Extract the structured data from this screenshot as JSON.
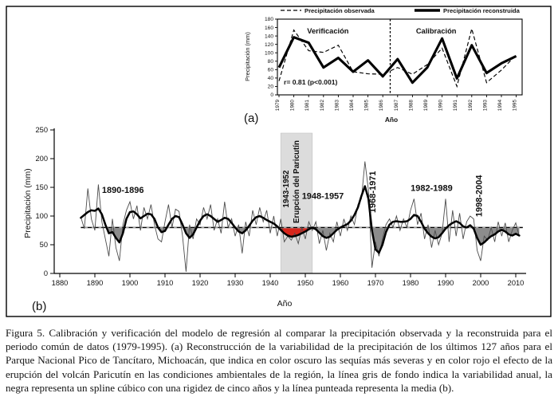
{
  "caption": "Figura 5. Calibración y verificación del modelo de regresión al comparar la precipitación observada y la reconstruida para el periodo común de datos (1979-1995). (a) Reconstrucción de la variabilidad de la precipitación de los últimos 127 años para el Parque Nacional Pico de Tancítaro, Michoacán, que indica en color oscuro las sequías más severas y en color rojo el efecto de la erupción del volcán Paricutín en las condiciones ambientales de la región, la línea gris de fondo indica la variabilidad anual, la negra representa un spline cúbico con una rigidez de cinco años y la línea punteada representa la media (b).",
  "chart_data": [
    {
      "id": "panel_a",
      "panel_label": "(a)",
      "type": "line",
      "xlabel": "Año",
      "ylabel": "Precipitación (mm)",
      "ylim": [
        0,
        180
      ],
      "yticks": [
        0,
        20,
        40,
        60,
        80,
        100,
        120,
        140,
        160,
        180
      ],
      "x": [
        1979,
        1980,
        1981,
        1982,
        1983,
        1984,
        1985,
        1986,
        1987,
        1988,
        1989,
        1990,
        1991,
        1992,
        1993,
        1994,
        1995
      ],
      "series": [
        {
          "name": "Precipitación observada",
          "style": "dashed",
          "values": [
            33,
            154,
            105,
            101,
            118,
            55,
            50,
            49,
            65,
            49,
            72,
            111,
            20,
            157,
            29,
            59,
            95
          ]
        },
        {
          "name": "Precipitación reconstruida",
          "style": "solid-thick",
          "values": [
            65,
            137,
            124,
            65,
            88,
            55,
            82,
            44,
            85,
            29,
            65,
            134,
            39,
            118,
            52,
            75,
            92
          ]
        }
      ],
      "section_labels": [
        {
          "text": "Verificación",
          "x": 1982.3
        },
        {
          "text": "Calibración",
          "x": 1989.6
        }
      ],
      "divider_x": 1986.5,
      "stat_annotation": "r= 0.81 (p<0.001)",
      "legend_position": "top",
      "grid": false
    },
    {
      "id": "panel_b",
      "panel_label": "(b)",
      "type": "line+area",
      "xlabel": "Año",
      "ylabel": "Precipitación (mm)",
      "ylim": [
        0,
        250
      ],
      "yticks": [
        0,
        50,
        100,
        150,
        200,
        250
      ],
      "xticks": [
        1880,
        1890,
        1900,
        1910,
        1920,
        1930,
        1940,
        1950,
        1960,
        1970,
        1980,
        1990,
        2000,
        2010
      ],
      "xlim": [
        1880,
        2012
      ],
      "mean_value": 80,
      "x": [
        1886,
        1887,
        1888,
        1889,
        1890,
        1891,
        1892,
        1893,
        1894,
        1895,
        1896,
        1897,
        1898,
        1899,
        1900,
        1901,
        1902,
        1903,
        1904,
        1905,
        1906,
        1907,
        1908,
        1909,
        1910,
        1911,
        1912,
        1913,
        1914,
        1915,
        1916,
        1917,
        1918,
        1919,
        1920,
        1921,
        1922,
        1923,
        1924,
        1925,
        1926,
        1927,
        1928,
        1929,
        1930,
        1931,
        1932,
        1933,
        1934,
        1935,
        1936,
        1937,
        1938,
        1939,
        1940,
        1941,
        1942,
        1943,
        1944,
        1945,
        1946,
        1947,
        1948,
        1949,
        1950,
        1951,
        1952,
        1953,
        1954,
        1955,
        1956,
        1957,
        1958,
        1959,
        1960,
        1961,
        1962,
        1963,
        1964,
        1965,
        1966,
        1967,
        1968,
        1969,
        1970,
        1971,
        1972,
        1973,
        1974,
        1975,
        1976,
        1977,
        1978,
        1979,
        1980,
        1981,
        1982,
        1983,
        1984,
        1985,
        1986,
        1987,
        1988,
        1989,
        1990,
        1991,
        1992,
        1993,
        1994,
        1995,
        1996,
        1997,
        1998,
        1999,
        2000,
        2001,
        2002,
        2003,
        2004,
        2005,
        2006,
        2007,
        2008,
        2009,
        2010,
        2011
      ],
      "series": [
        {
          "name": "variabilidad anual",
          "style": "thin-gray",
          "values": [
            98,
            78,
            148,
            95,
            75,
            155,
            90,
            60,
            30,
            95,
            45,
            22,
            85,
            110,
            125,
            95,
            118,
            75,
            115,
            95,
            120,
            85,
            60,
            55,
            90,
            120,
            80,
            112,
            108,
            65,
            3,
            85,
            60,
            95,
            85,
            115,
            95,
            120,
            75,
            95,
            70,
            125,
            80,
            95,
            65,
            85,
            35,
            90,
            65,
            110,
            85,
            115,
            90,
            110,
            70,
            100,
            65,
            95,
            55,
            65,
            58,
            70,
            52,
            80,
            60,
            90,
            75,
            90,
            52,
            75,
            40,
            70,
            55,
            90,
            65,
            95,
            75,
            100,
            85,
            120,
            130,
            195,
            145,
            10,
            55,
            30,
            60,
            85,
            95,
            80,
            100,
            75,
            95,
            80,
            110,
            130,
            85,
            105,
            60,
            85,
            45,
            75,
            50,
            70,
            130,
            55,
            110,
            65,
            105,
            60,
            90,
            100,
            95,
            40,
            22,
            65,
            58,
            80,
            55,
            90,
            65,
            88,
            55,
            75,
            88,
            65
          ]
        },
        {
          "name": "spline cúbico (rigidez 5 años)",
          "style": "thick-black",
          "values": [
            97,
            102,
            107,
            110,
            109,
            113,
            103,
            85,
            70,
            72,
            62,
            54,
            70,
            95,
            107,
            108,
            103,
            96,
            100,
            104,
            103,
            95,
            80,
            72,
            74,
            85,
            95,
            100,
            98,
            85,
            70,
            62,
            68,
            80,
            92,
            100,
            103,
            100,
            95,
            90,
            93,
            97,
            95,
            88,
            80,
            73,
            70,
            75,
            83,
            92,
            98,
            100,
            97,
            93,
            90,
            87,
            82,
            76,
            70,
            66,
            64,
            65,
            67,
            70,
            73,
            77,
            80,
            77,
            71,
            65,
            62,
            64,
            70,
            76,
            80,
            83,
            86,
            92,
            102,
            115,
            135,
            152,
            130,
            75,
            42,
            36,
            50,
            72,
            85,
            90,
            91,
            90,
            90,
            91,
            95,
            102,
            100,
            90,
            78,
            70,
            64,
            61,
            63,
            70,
            78,
            84,
            88,
            91,
            88,
            82,
            80,
            84,
            78,
            62,
            50,
            54,
            60,
            65,
            68,
            73,
            76,
            73,
            68,
            66,
            69,
            66
          ]
        }
      ],
      "mean_line": {
        "label": "media",
        "style": "dashed-black-over-gray"
      },
      "eruption_band": {
        "from": 1943,
        "to": 1952,
        "labels": [
          "1943-1952",
          "Erupción del Paricutín"
        ]
      },
      "drought_annotations": [
        {
          "text": "1890-1896",
          "x": 1898,
          "y": 140,
          "rotated": false
        },
        {
          "text": "1948-1957",
          "x": 1955,
          "y": 130,
          "rotated": false
        },
        {
          "text": "1968-1971",
          "x": 1970,
          "y": 142,
          "rotated": true
        },
        {
          "text": "1982-1989",
          "x": 1986,
          "y": 144,
          "rotated": false
        },
        {
          "text": "1998-2004",
          "x": 2000.3,
          "y": 135,
          "rotated": true
        }
      ],
      "colors": {
        "severe_drought_fill": "#8c8c8c",
        "eruption_fill": "#d8261c",
        "eruption_band": "#dcdcdc",
        "annual_line": "#4d4d4d",
        "spline_line": "#000000",
        "mean_gray_line": "#9e9e9e"
      },
      "grid": false
    }
  ]
}
